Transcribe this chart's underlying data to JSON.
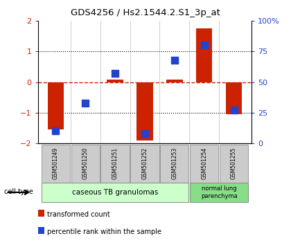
{
  "title": "GDS4256 / Hs2.1544.2.S1_3p_at",
  "samples": [
    "GSM501249",
    "GSM501250",
    "GSM501251",
    "GSM501252",
    "GSM501253",
    "GSM501254",
    "GSM501255"
  ],
  "transformed_count": [
    -1.55,
    -0.02,
    0.08,
    -1.9,
    0.07,
    1.75,
    -1.05
  ],
  "percentile_rank": [
    10,
    33,
    57,
    8,
    68,
    80,
    27
  ],
  "ylim_left": [
    -2,
    2
  ],
  "ylim_right": [
    0,
    100
  ],
  "yticks_left": [
    -2,
    -1,
    0,
    1,
    2
  ],
  "yticks_right": [
    0,
    25,
    50,
    75,
    100
  ],
  "ytick_labels_right": [
    "0",
    "25",
    "50",
    "75",
    "100%"
  ],
  "bar_color": "#cc2200",
  "dot_color": "#2244cc",
  "bar_width": 0.55,
  "dot_size": 50,
  "group1_label": "caseous TB granulomas",
  "group2_label": "normal lung\nparenchyma",
  "group1_color": "#ccffcc",
  "group2_color": "#88dd88",
  "cell_type_label": "cell type",
  "legend_bar_label": "transformed count",
  "legend_dot_label": "percentile rank within the sample",
  "tick_color_left": "#cc2200",
  "tick_color_right": "#2244cc",
  "sample_box_color": "#cccccc",
  "sample_box_edge": "#999999"
}
